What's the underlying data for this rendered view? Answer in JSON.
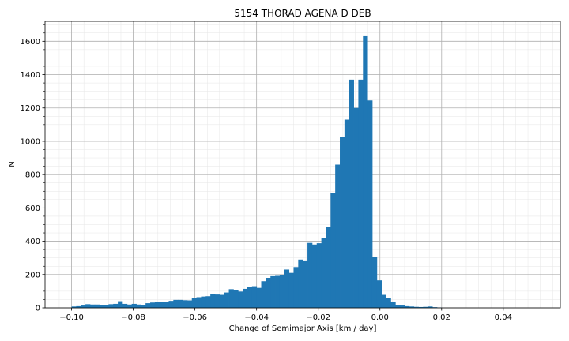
{
  "chart_data": {
    "type": "bar",
    "title": "5154 THORAD AGENA D DEB",
    "xlabel": "Change of Semimajor Axis [km / day]",
    "ylabel": "N",
    "xlim": [
      -0.1086,
      0.0585
    ],
    "ylim": [
      0,
      1720
    ],
    "xticks": [
      -0.1,
      -0.08,
      -0.06,
      -0.04,
      -0.02,
      0.0,
      0.02,
      0.04
    ],
    "xtick_labels": [
      "−0.10",
      "−0.08",
      "−0.06",
      "−0.04",
      "−0.02",
      "0.00",
      "0.02",
      "0.04"
    ],
    "yticks": [
      0,
      200,
      400,
      600,
      800,
      1000,
      1200,
      1400,
      1600
    ],
    "ytick_labels": [
      "0",
      "200",
      "400",
      "600",
      "800",
      "1000",
      "1200",
      "1400",
      "1600"
    ],
    "grid": true,
    "minor_grid": true,
    "bar_color": "#1f77b4",
    "bin_start": -0.1,
    "bin_width": 0.0015,
    "values": [
      8,
      10,
      14,
      22,
      20,
      20,
      18,
      16,
      22,
      24,
      40,
      24,
      20,
      24,
      20,
      18,
      28,
      32,
      34,
      34,
      36,
      42,
      48,
      48,
      46,
      45,
      60,
      64,
      68,
      70,
      84,
      80,
      78,
      92,
      112,
      106,
      98,
      114,
      124,
      130,
      120,
      160,
      180,
      190,
      192,
      198,
      230,
      210,
      245,
      290,
      280,
      390,
      380,
      388,
      420,
      485,
      690,
      860,
      1025,
      1130,
      1370,
      1200,
      1370,
      1635,
      1245,
      305,
      165,
      78,
      58,
      38,
      18,
      14,
      10,
      8,
      6,
      5,
      6,
      8,
      4,
      2
    ]
  }
}
